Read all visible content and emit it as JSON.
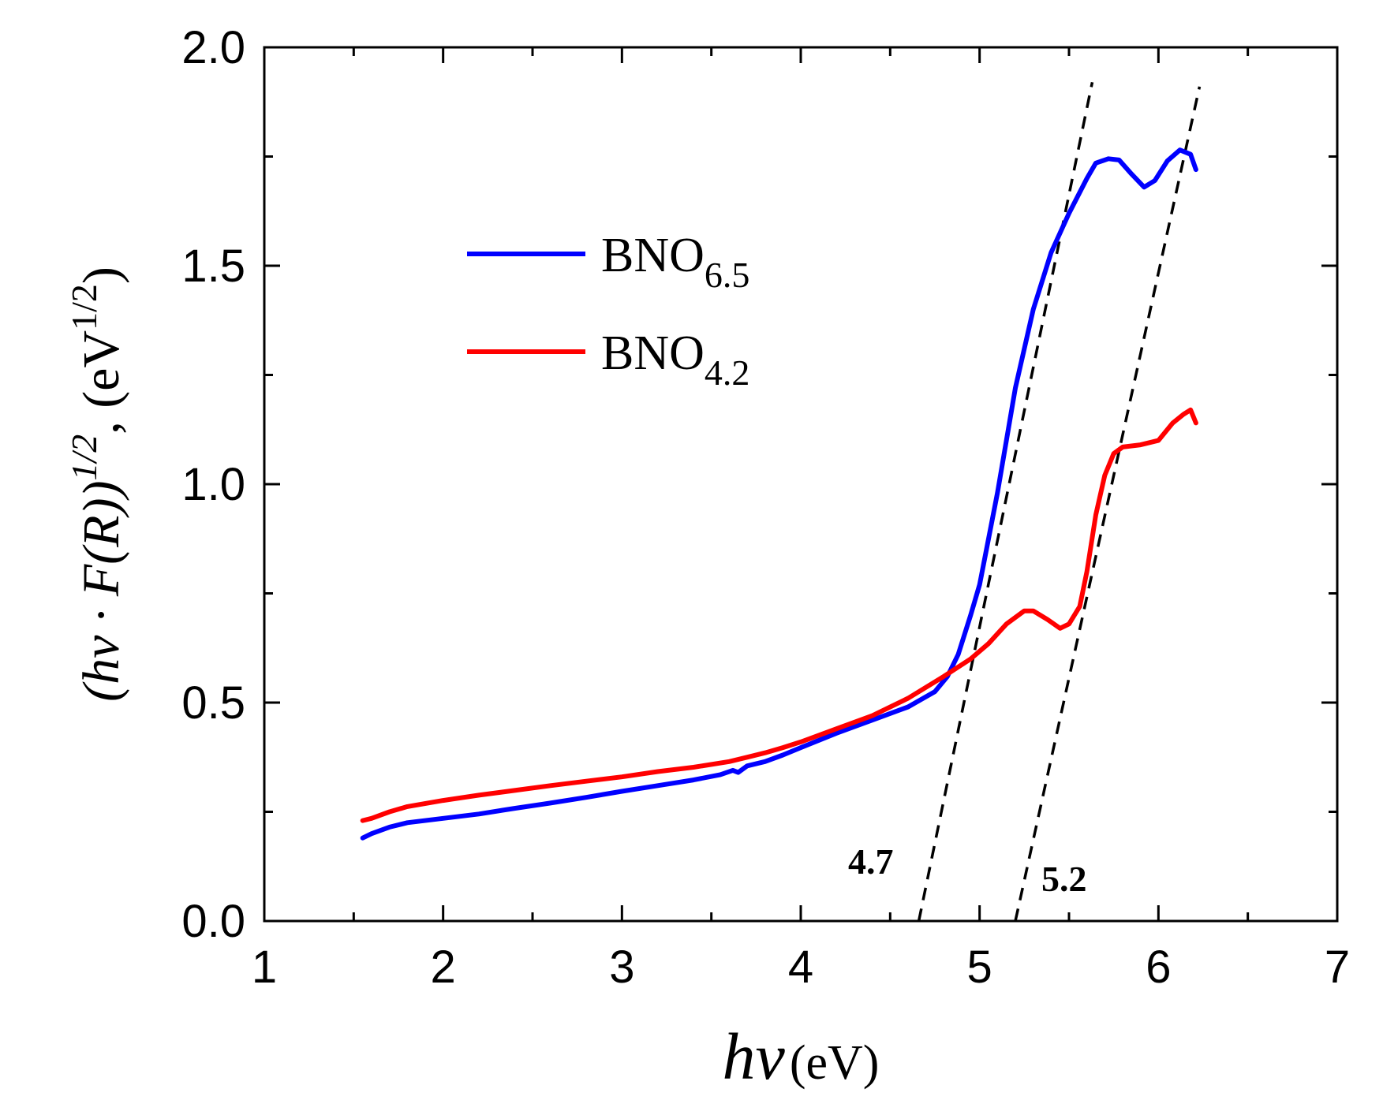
{
  "chart_data": {
    "type": "line",
    "title": "",
    "xlabel": {
      "main": "hν",
      "unit": "(eV)"
    },
    "ylabel": {
      "pre": "(hν · F(R))",
      "sup1": "1/2",
      "mid": ", (eV",
      "sup2": "1/2",
      "post": ")"
    },
    "xlim": [
      1,
      7
    ],
    "ylim": [
      0,
      2
    ],
    "x_ticks": [
      "1",
      "2",
      "3",
      "4",
      "5",
      "6",
      "7"
    ],
    "y_ticks": [
      "0.0",
      "0.5",
      "1.0",
      "1.5",
      "2.0"
    ],
    "grid": false,
    "legend_position": "upper-left",
    "series": [
      {
        "name": "BNO",
        "subscript": "6.5",
        "color": "#0000ff",
        "points": [
          [
            1.55,
            0.19
          ],
          [
            1.6,
            0.2
          ],
          [
            1.7,
            0.215
          ],
          [
            1.8,
            0.225
          ],
          [
            2.0,
            0.235
          ],
          [
            2.2,
            0.245
          ],
          [
            2.4,
            0.258
          ],
          [
            2.6,
            0.27
          ],
          [
            2.8,
            0.283
          ],
          [
            3.0,
            0.297
          ],
          [
            3.2,
            0.31
          ],
          [
            3.4,
            0.323
          ],
          [
            3.55,
            0.335
          ],
          [
            3.62,
            0.345
          ],
          [
            3.65,
            0.34
          ],
          [
            3.7,
            0.355
          ],
          [
            3.8,
            0.365
          ],
          [
            3.9,
            0.38
          ],
          [
            4.0,
            0.397
          ],
          [
            4.2,
            0.43
          ],
          [
            4.4,
            0.46
          ],
          [
            4.6,
            0.49
          ],
          [
            4.75,
            0.525
          ],
          [
            4.82,
            0.56
          ],
          [
            4.88,
            0.61
          ],
          [
            4.95,
            0.7
          ],
          [
            5.0,
            0.77
          ],
          [
            5.1,
            0.98
          ],
          [
            5.2,
            1.22
          ],
          [
            5.3,
            1.4
          ],
          [
            5.4,
            1.53
          ],
          [
            5.5,
            1.62
          ],
          [
            5.6,
            1.7
          ],
          [
            5.65,
            1.735
          ],
          [
            5.72,
            1.745
          ],
          [
            5.78,
            1.742
          ],
          [
            5.85,
            1.71
          ],
          [
            5.92,
            1.68
          ],
          [
            5.98,
            1.695
          ],
          [
            6.05,
            1.74
          ],
          [
            6.12,
            1.765
          ],
          [
            6.18,
            1.755
          ],
          [
            6.21,
            1.72
          ]
        ]
      },
      {
        "name": "BNO",
        "subscript": "4.2",
        "color": "#ff0000",
        "points": [
          [
            1.55,
            0.23
          ],
          [
            1.6,
            0.235
          ],
          [
            1.7,
            0.25
          ],
          [
            1.8,
            0.262
          ],
          [
            2.0,
            0.276
          ],
          [
            2.2,
            0.288
          ],
          [
            2.4,
            0.299
          ],
          [
            2.6,
            0.31
          ],
          [
            2.8,
            0.32
          ],
          [
            3.0,
            0.33
          ],
          [
            3.2,
            0.342
          ],
          [
            3.4,
            0.352
          ],
          [
            3.6,
            0.365
          ],
          [
            3.7,
            0.375
          ],
          [
            3.8,
            0.385
          ],
          [
            3.9,
            0.397
          ],
          [
            4.0,
            0.41
          ],
          [
            4.2,
            0.44
          ],
          [
            4.4,
            0.47
          ],
          [
            4.6,
            0.51
          ],
          [
            4.8,
            0.56
          ],
          [
            4.95,
            0.6
          ],
          [
            5.05,
            0.635
          ],
          [
            5.15,
            0.68
          ],
          [
            5.25,
            0.71
          ],
          [
            5.3,
            0.71
          ],
          [
            5.38,
            0.69
          ],
          [
            5.45,
            0.67
          ],
          [
            5.5,
            0.68
          ],
          [
            5.56,
            0.72
          ],
          [
            5.6,
            0.8
          ],
          [
            5.65,
            0.93
          ],
          [
            5.7,
            1.02
          ],
          [
            5.75,
            1.07
          ],
          [
            5.8,
            1.085
          ],
          [
            5.9,
            1.09
          ],
          [
            6.0,
            1.1
          ],
          [
            6.08,
            1.14
          ],
          [
            6.14,
            1.16
          ],
          [
            6.18,
            1.17
          ],
          [
            6.21,
            1.14
          ]
        ]
      }
    ],
    "fit_lines": [
      {
        "label": "4.7",
        "x0": 4.66,
        "y0": 0.0,
        "x1": 5.63,
        "y1": 1.92
      },
      {
        "label": "5.2",
        "x0": 5.2,
        "y0": 0.0,
        "x1": 6.23,
        "y1": 1.91
      }
    ]
  }
}
